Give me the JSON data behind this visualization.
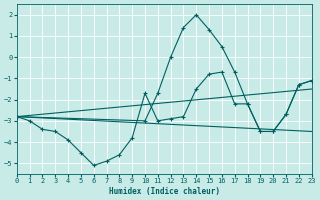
{
  "xlabel": "Humidex (Indice chaleur)",
  "xlim": [
    0,
    23
  ],
  "ylim": [
    -5.5,
    2.5
  ],
  "yticks": [
    -5,
    -4,
    -3,
    -2,
    -1,
    0,
    1,
    2
  ],
  "xticks": [
    0,
    1,
    2,
    3,
    4,
    5,
    6,
    7,
    8,
    9,
    10,
    11,
    12,
    13,
    14,
    15,
    16,
    17,
    18,
    19,
    20,
    21,
    22,
    23
  ],
  "bg_color": "#c8ebe8",
  "grid_color": "#e0f0f0",
  "line_color": "#006060",
  "series": [
    {
      "label": "wavy_bottom_full",
      "x": [
        0,
        1,
        2,
        3,
        4,
        5,
        6,
        7,
        8,
        9,
        10,
        11,
        12,
        13,
        14,
        15,
        16,
        17,
        18,
        19,
        20,
        21,
        22,
        23
      ],
      "y": [
        -2.8,
        -3.0,
        -3.4,
        -3.5,
        -3.9,
        -4.5,
        -5.1,
        -4.9,
        -4.6,
        -3.8,
        -1.7,
        -3.0,
        -2.9,
        -2.8,
        -1.5,
        -0.8,
        -0.7,
        -2.2,
        -2.2,
        -3.5,
        -3.5,
        -2.7,
        -1.3,
        -1.1
      ],
      "has_markers": true
    },
    {
      "label": "regression_shallow",
      "x": [
        0,
        23
      ],
      "y": [
        -2.8,
        -3.5
      ],
      "has_markers": false
    },
    {
      "label": "regression_steep",
      "x": [
        0,
        23
      ],
      "y": [
        -2.8,
        -1.5
      ],
      "has_markers": false
    },
    {
      "label": "peak_line",
      "x": [
        0,
        10,
        11,
        12,
        13,
        14,
        15,
        16,
        17,
        18,
        19,
        20,
        21,
        22,
        23
      ],
      "y": [
        -2.8,
        -3.0,
        -1.7,
        0.0,
        1.4,
        2.0,
        1.3,
        0.5,
        -0.7,
        -2.2,
        -3.5,
        -3.5,
        -2.7,
        -1.3,
        -1.1
      ],
      "has_markers": true
    }
  ]
}
